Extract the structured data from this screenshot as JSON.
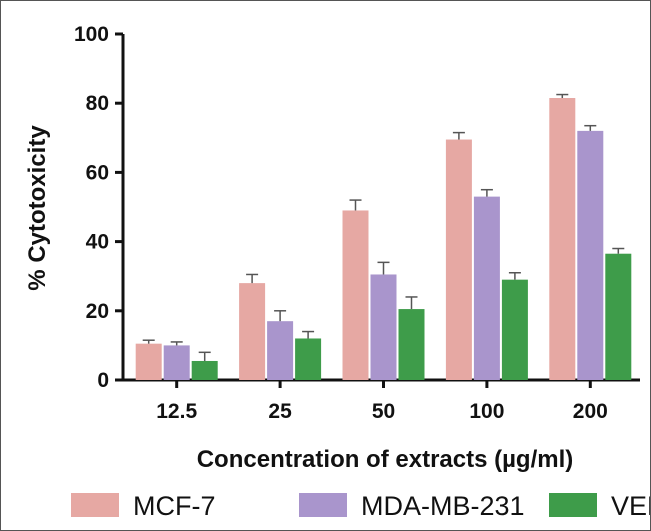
{
  "chart_data": {
    "type": "bar",
    "title": "",
    "xlabel": "Concentration of extracts (µg/ml)",
    "ylabel": "% Cytotoxicity",
    "ylim": [
      0,
      100
    ],
    "yticks": [
      "0",
      "20",
      "40",
      "60",
      "80",
      "100"
    ],
    "categories": [
      "12.5",
      "25",
      "50",
      "100",
      "200"
    ],
    "series": [
      {
        "name": "MCF-7",
        "color": "#e6a8a3",
        "values": [
          10.5,
          28.0,
          49.0,
          69.5,
          81.5
        ],
        "errors": [
          1.0,
          2.5,
          3.0,
          2.0,
          1.0
        ]
      },
      {
        "name": "MDA-MB-231",
        "color": "#a995cc",
        "values": [
          10.0,
          17.0,
          30.5,
          53.0,
          72.0
        ],
        "errors": [
          1.0,
          3.0,
          3.5,
          2.0,
          1.5
        ]
      },
      {
        "name": "VERO",
        "color": "#3e9c4a",
        "values": [
          5.5,
          12.0,
          20.5,
          29.0,
          36.5
        ],
        "errors": [
          2.5,
          2.0,
          3.5,
          2.0,
          1.5
        ]
      }
    ],
    "error_bars": true,
    "grid": false,
    "legend_position": "bottom"
  }
}
